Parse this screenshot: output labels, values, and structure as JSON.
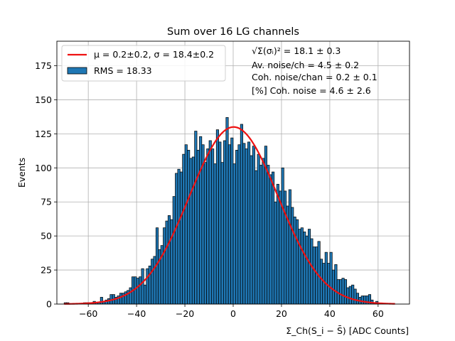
{
  "chart_data": {
    "type": "bar",
    "title": "Sum over 16 LG channels",
    "xlabel": "Σ_Ch(S_i − S̄) [ADC Counts]",
    "ylabel": "Events",
    "xlim": [
      -73,
      73
    ],
    "ylim": [
      0,
      193
    ],
    "xticks": [
      -60,
      -40,
      -20,
      0,
      20,
      40,
      60
    ],
    "yticks": [
      0,
      25,
      50,
      75,
      100,
      125,
      150,
      175
    ],
    "grid": true,
    "legend_position": "top-left",
    "bin_width": 1,
    "bins_x": [
      -70,
      -69,
      -68,
      -67,
      -66,
      -65,
      -64,
      -63,
      -62,
      -61,
      -60,
      -59,
      -58,
      -57,
      -56,
      -55,
      -54,
      -53,
      -52,
      -51,
      -50,
      -49,
      -48,
      -47,
      -46,
      -45,
      -44,
      -43,
      -42,
      -41,
      -40,
      -39,
      -38,
      -37,
      -36,
      -35,
      -34,
      -33,
      -32,
      -31,
      -30,
      -29,
      -28,
      -27,
      -26,
      -25,
      -24,
      -23,
      -22,
      -21,
      -20,
      -19,
      -18,
      -17,
      -16,
      -15,
      -14,
      -13,
      -12,
      -11,
      -10,
      -9,
      -8,
      -7,
      -6,
      -5,
      -4,
      -3,
      -2,
      -1,
      0,
      1,
      2,
      3,
      4,
      5,
      6,
      7,
      8,
      9,
      10,
      11,
      12,
      13,
      14,
      15,
      16,
      17,
      18,
      19,
      20,
      21,
      22,
      23,
      24,
      25,
      26,
      27,
      28,
      29,
      30,
      31,
      32,
      33,
      34,
      35,
      36,
      37,
      38,
      39,
      40,
      41,
      42,
      43,
      44,
      45,
      46,
      47,
      48,
      49,
      50,
      51,
      52,
      53,
      54,
      55,
      56,
      57,
      58,
      59,
      60,
      61,
      62,
      63,
      64,
      65,
      66
    ],
    "bins_count": [
      1,
      1,
      0,
      0,
      0,
      0,
      0,
      0,
      1,
      1,
      1,
      1,
      2,
      1,
      1,
      5,
      2,
      3,
      4,
      7,
      7,
      5,
      6,
      8,
      8,
      9,
      10,
      12,
      20,
      20,
      19,
      20,
      26,
      14,
      26,
      28,
      33,
      35,
      56,
      40,
      43,
      56,
      61,
      65,
      62,
      79,
      96,
      99,
      97,
      110,
      117,
      113,
      107,
      108,
      127,
      113,
      123,
      117,
      104,
      114,
      120,
      114,
      103,
      128,
      119,
      104,
      120,
      137,
      117,
      122,
      103,
      113,
      117,
      132,
      118,
      114,
      119,
      109,
      116,
      98,
      110,
      102,
      107,
      116,
      102,
      95,
      97,
      75,
      88,
      83,
      100,
      83,
      72,
      84,
      71,
      64,
      62,
      55,
      56,
      53,
      50,
      55,
      48,
      42,
      42,
      46,
      33,
      30,
      38,
      30,
      38,
      25,
      29,
      18,
      18,
      19,
      18,
      12,
      13,
      14,
      11,
      8,
      5,
      6,
      6,
      6,
      7,
      3,
      1,
      2,
      0,
      0,
      0,
      0,
      0,
      0,
      0
    ],
    "series": [
      {
        "name": "RMS = 18.33",
        "kind": "histogram",
        "color": "#1f77b4",
        "edgecolor": "#000000"
      },
      {
        "name": "μ = 0.2±0.2, σ = 18.4±0.2",
        "kind": "gaussian-fit",
        "color": "#ee1111",
        "amplitude": 130,
        "mu": 0.2,
        "sigma": 18.4,
        "x_range": [
          -70,
          67
        ]
      }
    ],
    "annotations": [
      "√Σ(σᵢ)² = 18.1 ± 0.3",
      "Av. noise/ch  = 4.5 ± 0.2",
      "Coh. noise/chan  = 0.2 ± 0.1",
      "[%] Coh. noise  = 4.6 ± 2.6"
    ]
  }
}
